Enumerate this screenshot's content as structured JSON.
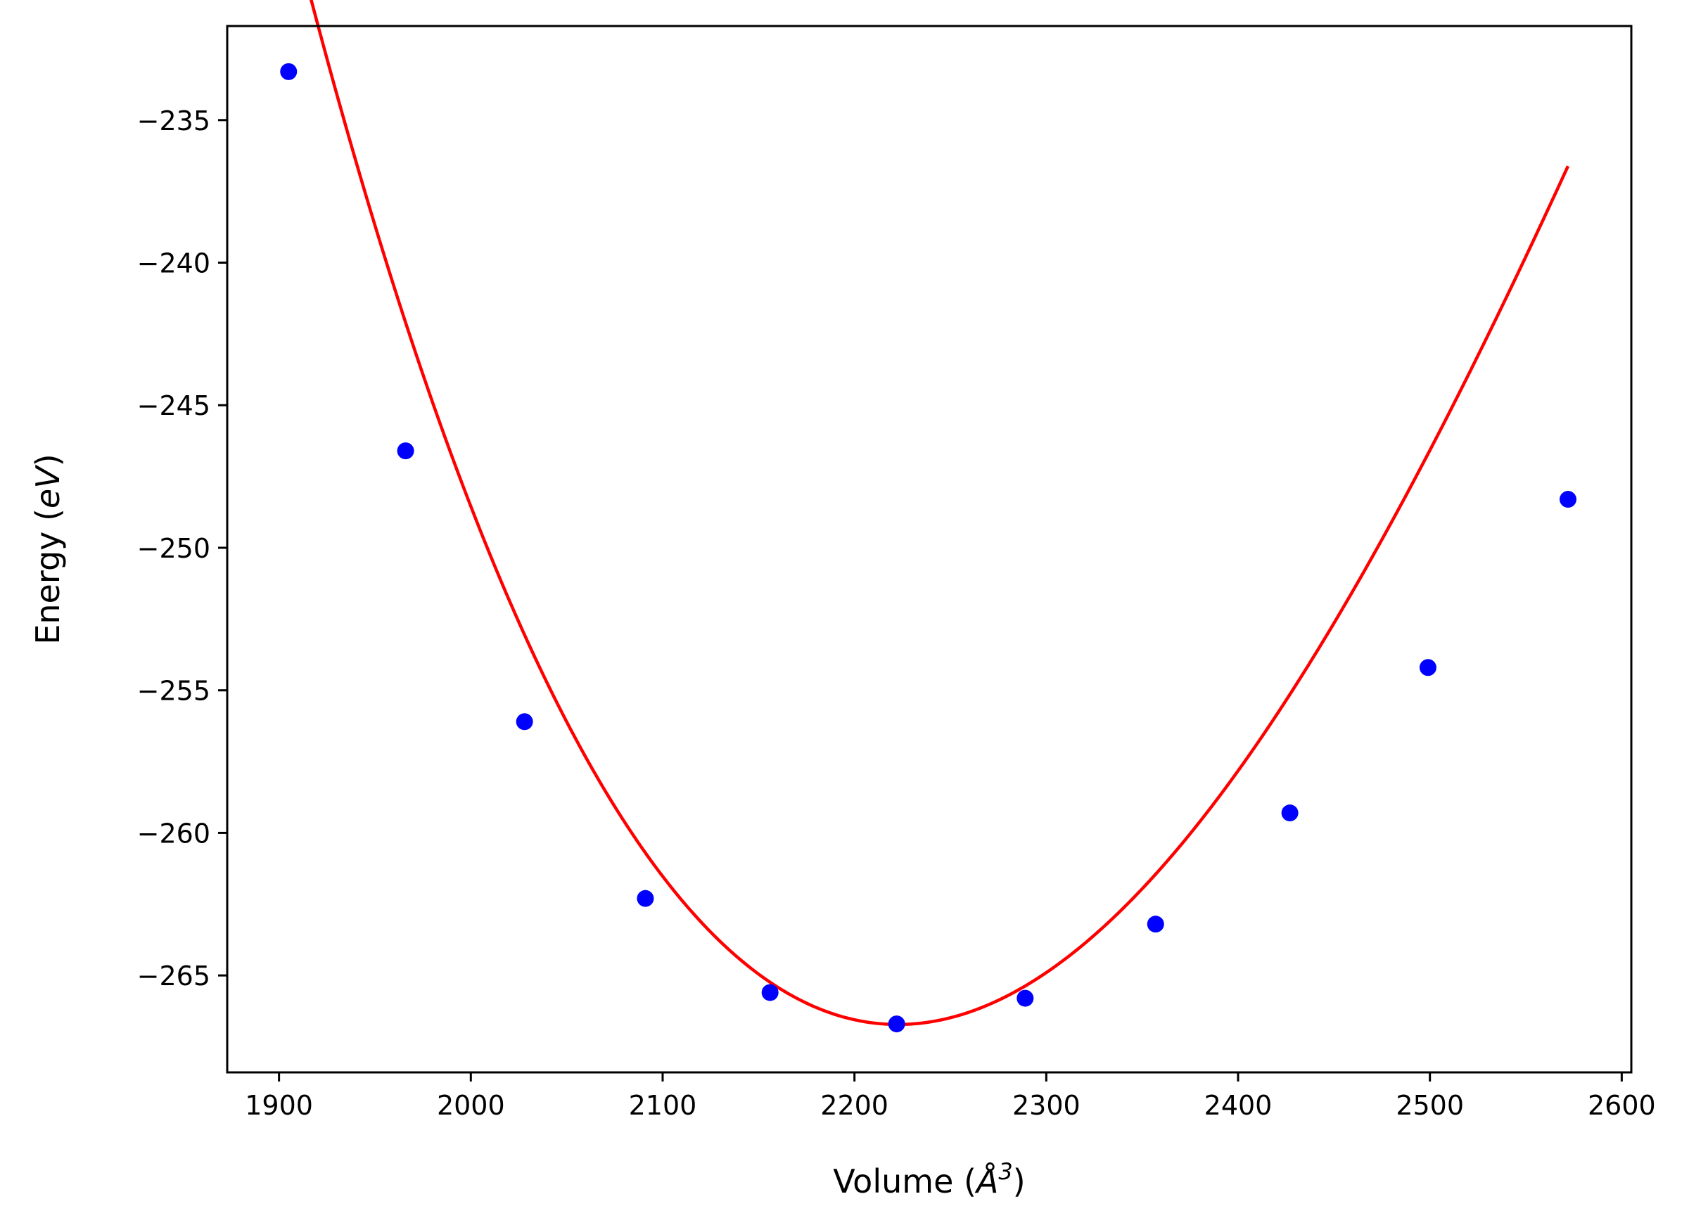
{
  "chart_data": {
    "type": "scatter",
    "title": "",
    "xlabel_text": "Volume (",
    "xlabel_symbol": "Å",
    "xlabel_exp": "3",
    "xlabel_close": ")",
    "ylabel_text": "Energy (",
    "ylabel_unit": "eV",
    "ylabel_close": ")",
    "xlim": [
      1873,
      2605
    ],
    "ylim": [
      -268.4,
      -231.7
    ],
    "xticks": [
      1900,
      2000,
      2100,
      2200,
      2300,
      2400,
      2500,
      2600
    ],
    "xtick_labels": [
      "1900",
      "2000",
      "2100",
      "2200",
      "2300",
      "2400",
      "2500",
      "2600"
    ],
    "yticks": [
      -235,
      -240,
      -245,
      -250,
      -255,
      -260,
      -265
    ],
    "ytick_labels": [
      "−235",
      "−240",
      "−245",
      "−250",
      "−255",
      "−260",
      "−265"
    ],
    "grid": false,
    "legend": "none",
    "series": [
      {
        "kind": "points",
        "color": "#0000ff",
        "x": [
          1905,
          1966,
          2028,
          2091,
          2156,
          2222,
          2289,
          2357,
          2427,
          2499,
          2572
        ],
        "y": [
          -233.3,
          -246.6,
          -256.1,
          -262.3,
          -265.6,
          -266.7,
          -265.8,
          -263.2,
          -259.3,
          -254.2,
          -248.3
        ]
      },
      {
        "kind": "fit-curve",
        "color": "#ff0000",
        "x_range": [
          1905,
          2572
        ],
        "fit_min_volume": 2222.6,
        "fit_min_energy": -266.72,
        "fit_curvature": 0.00032,
        "fit_skew": -2.1e-07
      }
    ]
  }
}
